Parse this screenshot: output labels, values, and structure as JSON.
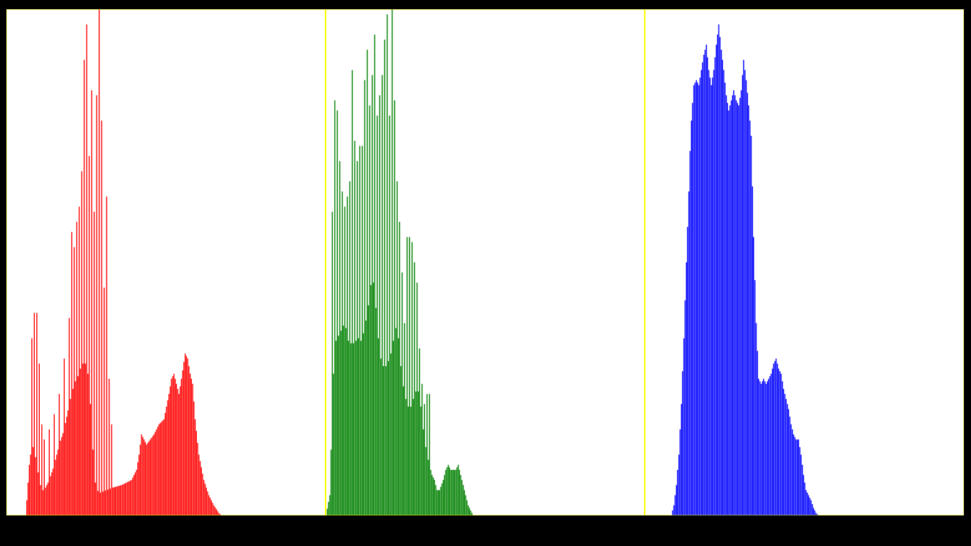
{
  "chart_data": {
    "type": "histogram",
    "title": "",
    "xlabel": "",
    "ylabel": "",
    "bins_per_channel": 256,
    "channel_order": [
      "red",
      "green",
      "blue"
    ],
    "grid": false,
    "legend": "none",
    "divider_color": "#ffff00",
    "background_color": "#ffffff",
    "frame_color": "#000000",
    "ylim": [
      0,
      1.0
    ],
    "channels": [
      {
        "color": "#ff0000",
        "envelope": [
          [
            0,
            0
          ],
          [
            15,
            0
          ],
          [
            16,
            0.03
          ],
          [
            18,
            0.1
          ],
          [
            20,
            0.14
          ],
          [
            22,
            0.13
          ],
          [
            24,
            0.1
          ],
          [
            26,
            0.07
          ],
          [
            28,
            0.05
          ],
          [
            30,
            0.05
          ],
          [
            34,
            0.07
          ],
          [
            38,
            0.1
          ],
          [
            42,
            0.14
          ],
          [
            46,
            0.17
          ],
          [
            50,
            0.22
          ],
          [
            54,
            0.26
          ],
          [
            58,
            0.28
          ],
          [
            60,
            0.3
          ],
          [
            64,
            0.3
          ],
          [
            66,
            0.26
          ],
          [
            68,
            0.18
          ],
          [
            70,
            0.08
          ],
          [
            72,
            0.05
          ],
          [
            75,
            0.045
          ],
          [
            80,
            0.05
          ],
          [
            85,
            0.055
          ],
          [
            92,
            0.06
          ],
          [
            100,
            0.07
          ],
          [
            104,
            0.09
          ],
          [
            106,
            0.12
          ],
          [
            108,
            0.16
          ],
          [
            110,
            0.15
          ],
          [
            112,
            0.14
          ],
          [
            118,
            0.16
          ],
          [
            122,
            0.18
          ],
          [
            126,
            0.19
          ],
          [
            130,
            0.24
          ],
          [
            132,
            0.27
          ],
          [
            134,
            0.28
          ],
          [
            136,
            0.26
          ],
          [
            138,
            0.24
          ],
          [
            140,
            0.27
          ],
          [
            143,
            0.32
          ],
          [
            145,
            0.31
          ],
          [
            147,
            0.28
          ],
          [
            149,
            0.26
          ],
          [
            151,
            0.19
          ],
          [
            154,
            0.12
          ],
          [
            158,
            0.07
          ],
          [
            162,
            0.04
          ],
          [
            166,
            0.02
          ],
          [
            170,
            0.005
          ],
          [
            172,
            0
          ],
          [
            255,
            0
          ]
        ],
        "spike_peaks": [
          [
            20,
            0.35
          ],
          [
            22,
            0.4
          ],
          [
            24,
            0.4
          ],
          [
            26,
            0.3
          ],
          [
            28,
            0.18
          ],
          [
            30,
            0.15
          ],
          [
            34,
            0.17
          ],
          [
            38,
            0.2
          ],
          [
            42,
            0.24
          ],
          [
            46,
            0.31
          ],
          [
            50,
            0.39
          ],
          [
            52,
            0.56
          ],
          [
            54,
            0.53
          ],
          [
            56,
            0.58
          ],
          [
            58,
            0.61
          ],
          [
            60,
            0.68
          ],
          [
            62,
            0.9
          ],
          [
            64,
            0.97
          ],
          [
            66,
            0.71
          ],
          [
            68,
            0.84
          ],
          [
            70,
            0.6
          ],
          [
            72,
            0.83
          ],
          [
            74,
            1.0
          ],
          [
            76,
            0.78
          ],
          [
            78,
            0.45
          ],
          [
            80,
            0.63
          ],
          [
            82,
            0.27
          ],
          [
            84,
            0.18
          ]
        ]
      },
      {
        "color": "#008000",
        "envelope": [
          [
            0,
            0
          ],
          [
            3,
            0.04
          ],
          [
            5,
            0.22
          ],
          [
            7,
            0.34
          ],
          [
            9,
            0.35
          ],
          [
            11,
            0.36
          ],
          [
            13,
            0.37
          ],
          [
            15,
            0.38
          ],
          [
            17,
            0.36
          ],
          [
            19,
            0.33
          ],
          [
            21,
            0.35
          ],
          [
            23,
            0.33
          ],
          [
            25,
            0.36
          ],
          [
            27,
            0.34
          ],
          [
            29,
            0.35
          ],
          [
            31,
            0.37
          ],
          [
            33,
            0.4
          ],
          [
            35,
            0.43
          ],
          [
            37,
            0.48
          ],
          [
            39,
            0.44
          ],
          [
            41,
            0.38
          ],
          [
            43,
            0.32
          ],
          [
            45,
            0.3
          ],
          [
            47,
            0.29
          ],
          [
            49,
            0.3
          ],
          [
            51,
            0.31
          ],
          [
            53,
            0.33
          ],
          [
            55,
            0.36
          ],
          [
            57,
            0.38
          ],
          [
            59,
            0.32
          ],
          [
            61,
            0.27
          ],
          [
            63,
            0.24
          ],
          [
            65,
            0.22
          ],
          [
            67,
            0.21
          ],
          [
            69,
            0.22
          ],
          [
            71,
            0.24
          ],
          [
            73,
            0.25
          ],
          [
            75,
            0.24
          ],
          [
            77,
            0.19
          ],
          [
            79,
            0.15
          ],
          [
            81,
            0.12
          ],
          [
            83,
            0.1
          ],
          [
            85,
            0.08
          ],
          [
            87,
            0.07
          ],
          [
            89,
            0.05
          ],
          [
            91,
            0.05
          ],
          [
            94,
            0.07
          ],
          [
            96,
            0.09
          ],
          [
            98,
            0.1
          ],
          [
            100,
            0.09
          ],
          [
            102,
            0.09
          ],
          [
            104,
            0.09
          ],
          [
            106,
            0.1
          ],
          [
            108,
            0.08
          ],
          [
            110,
            0.06
          ],
          [
            112,
            0.04
          ],
          [
            114,
            0.02
          ],
          [
            116,
            0.01
          ],
          [
            118,
            0
          ],
          [
            255,
            0
          ]
        ],
        "spike_peaks": [
          [
            5,
            0.6
          ],
          [
            7,
            0.82
          ],
          [
            9,
            0.8
          ],
          [
            11,
            0.7
          ],
          [
            13,
            0.64
          ],
          [
            15,
            0.61
          ],
          [
            17,
            0.63
          ],
          [
            19,
            0.66
          ],
          [
            21,
            0.88
          ],
          [
            23,
            0.74
          ],
          [
            25,
            0.7
          ],
          [
            27,
            0.73
          ],
          [
            29,
            0.73
          ],
          [
            31,
            0.86
          ],
          [
            33,
            0.92
          ],
          [
            35,
            0.81
          ],
          [
            37,
            0.87
          ],
          [
            39,
            0.95
          ],
          [
            41,
            0.79
          ],
          [
            43,
            0.83
          ],
          [
            45,
            0.87
          ],
          [
            47,
            0.94
          ],
          [
            49,
            0.99
          ],
          [
            51,
            0.79
          ],
          [
            53,
            1.0
          ],
          [
            55,
            0.82
          ],
          [
            57,
            0.66
          ],
          [
            59,
            0.58
          ],
          [
            61,
            0.48
          ],
          [
            63,
            0.38
          ],
          [
            65,
            0.55
          ],
          [
            67,
            0.55
          ],
          [
            69,
            0.54
          ],
          [
            71,
            0.5
          ],
          [
            73,
            0.46
          ],
          [
            75,
            0.33
          ],
          [
            77,
            0.26
          ],
          [
            79,
            0.22
          ],
          [
            81,
            0.24
          ],
          [
            83,
            0.24
          ]
        ]
      },
      {
        "color": "#0000ff",
        "envelope": [
          [
            0,
            0
          ],
          [
            21,
            0
          ],
          [
            23,
            0.02
          ],
          [
            25,
            0.06
          ],
          [
            27,
            0.12
          ],
          [
            29,
            0.22
          ],
          [
            31,
            0.35
          ],
          [
            33,
            0.5
          ],
          [
            35,
            0.64
          ],
          [
            36,
            0.72
          ],
          [
            37,
            0.78
          ],
          [
            39,
            0.85
          ],
          [
            41,
            0.86
          ],
          [
            43,
            0.85
          ],
          [
            45,
            0.88
          ],
          [
            47,
            0.91
          ],
          [
            49,
            0.93
          ],
          [
            51,
            0.88
          ],
          [
            53,
            0.85
          ],
          [
            55,
            0.88
          ],
          [
            57,
            0.93
          ],
          [
            59,
            0.97
          ],
          [
            61,
            0.92
          ],
          [
            63,
            0.88
          ],
          [
            65,
            0.83
          ],
          [
            67,
            0.8
          ],
          [
            69,
            0.82
          ],
          [
            71,
            0.84
          ],
          [
            73,
            0.82
          ],
          [
            75,
            0.81
          ],
          [
            77,
            0.84
          ],
          [
            79,
            0.9
          ],
          [
            81,
            0.86
          ],
          [
            83,
            0.81
          ],
          [
            85,
            0.75
          ],
          [
            87,
            0.55
          ],
          [
            89,
            0.38
          ],
          [
            91,
            0.27
          ],
          [
            93,
            0.26
          ],
          [
            95,
            0.27
          ],
          [
            97,
            0.26
          ],
          [
            99,
            0.27
          ],
          [
            101,
            0.28
          ],
          [
            103,
            0.3
          ],
          [
            105,
            0.31
          ],
          [
            107,
            0.29
          ],
          [
            109,
            0.28
          ],
          [
            111,
            0.25
          ],
          [
            113,
            0.23
          ],
          [
            115,
            0.21
          ],
          [
            117,
            0.18
          ],
          [
            119,
            0.16
          ],
          [
            121,
            0.15
          ],
          [
            123,
            0.15
          ],
          [
            125,
            0.12
          ],
          [
            127,
            0.08
          ],
          [
            129,
            0.05
          ],
          [
            131,
            0.04
          ],
          [
            133,
            0.03
          ],
          [
            135,
            0.015
          ],
          [
            137,
            0.005
          ],
          [
            139,
            0
          ],
          [
            255,
            0
          ]
        ],
        "spike_peaks": []
      }
    ]
  }
}
